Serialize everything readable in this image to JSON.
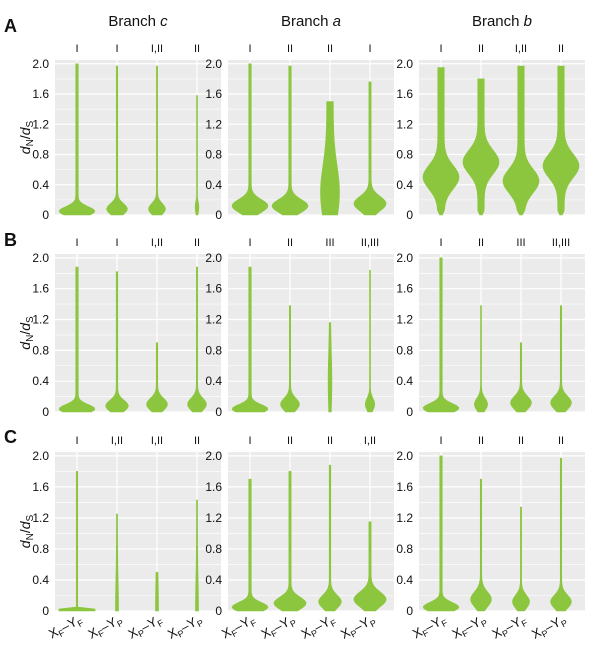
{
  "figure": {
    "columns": [
      {
        "prefix": "Branch ",
        "letter": "c"
      },
      {
        "prefix": "Branch ",
        "letter": "a"
      },
      {
        "prefix": "Branch ",
        "letter": "b"
      }
    ],
    "ylabel": {
      "d1": "d",
      "N": "N",
      "slash": "/",
      "d2": "d",
      "S": "S"
    },
    "x_categories": [
      {
        "main1": "X",
        "sub1": "F",
        "dash": "–",
        "main2": "Y",
        "sub2": "F"
      },
      {
        "main1": "X",
        "sub1": "F",
        "dash": "–",
        "main2": "Y",
        "sub2": "P"
      },
      {
        "main1": "X",
        "sub1": "P",
        "dash": "–",
        "main2": "Y",
        "sub2": "F"
      },
      {
        "main1": "X",
        "sub1": "P",
        "dash": "–",
        "main2": "Y",
        "sub2": "P"
      }
    ],
    "y_ticks": [
      0,
      0.4,
      0.8,
      1.2,
      1.6,
      2.0
    ],
    "colors": {
      "violin": "#8cc63f",
      "panel_bg": "#ebebeb",
      "grid": "#ffffff"
    }
  },
  "chart_data": [
    {
      "type": "violin",
      "row": "A",
      "column": "Branch c",
      "ylim": [
        0,
        2.05
      ],
      "sig_labels": [
        "I",
        "I",
        "I,II",
        "II"
      ],
      "series": [
        {
          "category": "XF-YF",
          "max": 2.0,
          "peak_y": 0.05,
          "width": 0.95,
          "shape": "lowpeak"
        },
        {
          "category": "XF-YP",
          "max": 1.97,
          "peak_y": 0.08,
          "width": 0.55,
          "shape": "lowpeak"
        },
        {
          "category": "XP-YF",
          "max": 1.97,
          "peak_y": 0.08,
          "width": 0.45,
          "shape": "lowpeak"
        },
        {
          "category": "XP-YP",
          "max": 1.58,
          "peak_y": 0.1,
          "width": 0.1,
          "shape": "lowpeak"
        }
      ]
    },
    {
      "type": "violin",
      "row": "A",
      "column": "Branch a",
      "ylim": [
        0,
        2.05
      ],
      "sig_labels": [
        "I",
        "II",
        "II",
        "I"
      ],
      "series": [
        {
          "category": "XF-YF",
          "max": 2.0,
          "peak_y": 0.12,
          "width": 0.95,
          "shape": "lowpeak"
        },
        {
          "category": "XF-YP",
          "max": 1.97,
          "peak_y": 0.12,
          "width": 0.95,
          "shape": "lowpeak"
        },
        {
          "category": "XP-YF",
          "max": 1.5,
          "peak_y": 0.3,
          "width": 0.5,
          "shape": "column"
        },
        {
          "category": "XP-YP",
          "max": 1.76,
          "peak_y": 0.15,
          "width": 0.85,
          "shape": "lowpeak"
        }
      ]
    },
    {
      "type": "violin",
      "row": "A",
      "column": "Branch b",
      "ylim": [
        0,
        2.05
      ],
      "sig_labels": [
        "I",
        "II",
        "I,II",
        "II"
      ],
      "series": [
        {
          "category": "XF-YF",
          "max": 1.95,
          "peak_y": 0.5,
          "width": 0.95,
          "shape": "broad"
        },
        {
          "category": "XF-YP",
          "max": 1.8,
          "peak_y": 0.7,
          "width": 0.95,
          "shape": "broad"
        },
        {
          "category": "XP-YF",
          "max": 1.97,
          "peak_y": 0.45,
          "width": 0.95,
          "shape": "broad"
        },
        {
          "category": "XP-YP",
          "max": 1.97,
          "peak_y": 0.65,
          "width": 0.95,
          "shape": "broad"
        }
      ]
    },
    {
      "type": "violin",
      "row": "B",
      "column": "Branch c",
      "ylim": [
        0,
        2.05
      ],
      "sig_labels": [
        "I",
        "I",
        "I,II",
        "II"
      ],
      "series": [
        {
          "category": "XF-YF",
          "max": 1.88,
          "peak_y": 0.04,
          "width": 0.95,
          "shape": "lowpeak"
        },
        {
          "category": "XF-YP",
          "max": 1.82,
          "peak_y": 0.08,
          "width": 0.6,
          "shape": "lowpeak"
        },
        {
          "category": "XP-YF",
          "max": 0.9,
          "peak_y": 0.1,
          "width": 0.55,
          "shape": "lowpeak"
        },
        {
          "category": "XP-YP",
          "max": 1.88,
          "peak_y": 0.1,
          "width": 0.5,
          "shape": "lowpeak"
        }
      ]
    },
    {
      "type": "violin",
      "row": "B",
      "column": "Branch a",
      "ylim": [
        0,
        2.05
      ],
      "sig_labels": [
        "I",
        "II",
        "III",
        "II,III"
      ],
      "series": [
        {
          "category": "XF-YF",
          "max": 1.88,
          "peak_y": 0.04,
          "width": 0.95,
          "shape": "lowpeak"
        },
        {
          "category": "XF-YP",
          "max": 1.38,
          "peak_y": 0.1,
          "width": 0.5,
          "shape": "lowpeak"
        },
        {
          "category": "XP-YF",
          "max": 1.16,
          "peak_y": 0.4,
          "width": 0.1,
          "shape": "column"
        },
        {
          "category": "XP-YP",
          "max": 1.84,
          "peak_y": 0.1,
          "width": 0.25,
          "shape": "lowpeak"
        }
      ]
    },
    {
      "type": "violin",
      "row": "B",
      "column": "Branch b",
      "ylim": [
        0,
        2.05
      ],
      "sig_labels": [
        "I",
        "II",
        "III",
        "II,III"
      ],
      "series": [
        {
          "category": "XF-YF",
          "max": 2.0,
          "peak_y": 0.05,
          "width": 0.95,
          "shape": "lowpeak"
        },
        {
          "category": "XF-YP",
          "max": 1.38,
          "peak_y": 0.1,
          "width": 0.35,
          "shape": "lowpeak"
        },
        {
          "category": "XP-YF",
          "max": 0.9,
          "peak_y": 0.12,
          "width": 0.55,
          "shape": "lowpeak"
        },
        {
          "category": "XP-YP",
          "max": 1.38,
          "peak_y": 0.12,
          "width": 0.55,
          "shape": "lowpeak"
        }
      ]
    },
    {
      "type": "violin",
      "row": "C",
      "column": "Branch c",
      "ylim": [
        0,
        2.05
      ],
      "sig_labels": [
        "I",
        "I,II",
        "I,II",
        "II"
      ],
      "series": [
        {
          "category": "XF-YF",
          "max": 1.8,
          "peak_y": 0.02,
          "width": 0.95,
          "shape": "flat"
        },
        {
          "category": "XF-YP",
          "max": 1.25,
          "peak_y": 0.05,
          "width": 0.08,
          "shape": "column"
        },
        {
          "category": "XP-YF",
          "max": 0.5,
          "peak_y": 0.05,
          "width": 0.08,
          "shape": "column"
        },
        {
          "category": "XP-YP",
          "max": 1.43,
          "peak_y": 0.05,
          "width": 0.08,
          "shape": "column"
        }
      ]
    },
    {
      "type": "violin",
      "row": "C",
      "column": "Branch a",
      "ylim": [
        0,
        2.05
      ],
      "sig_labels": [
        "I",
        "II",
        "II",
        "I,II"
      ],
      "series": [
        {
          "category": "XF-YF",
          "max": 1.7,
          "peak_y": 0.05,
          "width": 0.95,
          "shape": "lowpeak"
        },
        {
          "category": "XF-YP",
          "max": 1.8,
          "peak_y": 0.1,
          "width": 0.85,
          "shape": "lowpeak"
        },
        {
          "category": "XP-YF",
          "max": 1.88,
          "peak_y": 0.12,
          "width": 0.6,
          "shape": "lowpeak"
        },
        {
          "category": "XP-YP",
          "max": 1.15,
          "peak_y": 0.15,
          "width": 0.85,
          "shape": "lowpeak"
        }
      ]
    },
    {
      "type": "violin",
      "row": "C",
      "column": "Branch b",
      "ylim": [
        0,
        2.05
      ],
      "sig_labels": [
        "I",
        "II",
        "II",
        "II"
      ],
      "series": [
        {
          "category": "XF-YF",
          "max": 2.0,
          "peak_y": 0.05,
          "width": 0.95,
          "shape": "lowpeak"
        },
        {
          "category": "XF-YP",
          "max": 1.7,
          "peak_y": 0.15,
          "width": 0.55,
          "shape": "lowpeak"
        },
        {
          "category": "XP-YF",
          "max": 1.34,
          "peak_y": 0.12,
          "width": 0.45,
          "shape": "lowpeak"
        },
        {
          "category": "XP-YP",
          "max": 1.97,
          "peak_y": 0.12,
          "width": 0.55,
          "shape": "lowpeak"
        }
      ]
    }
  ]
}
